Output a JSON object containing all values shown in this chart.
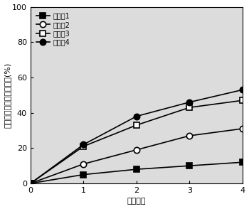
{
  "x": [
    0,
    1,
    2,
    3,
    4
  ],
  "series": [
    {
      "label": "实验组1",
      "values": [
        0,
        5,
        8,
        10,
        12
      ],
      "marker": "s",
      "fillstyle": "full",
      "color": "black"
    },
    {
      "label": "实验组2",
      "values": [
        0,
        11,
        19,
        27,
        31
      ],
      "marker": "o",
      "fillstyle": "none",
      "color": "black"
    },
    {
      "label": "实验组3",
      "values": [
        0,
        21,
        33,
        43,
        47
      ],
      "marker": "s",
      "fillstyle": "none",
      "color": "black"
    },
    {
      "label": "实验组4",
      "values": [
        0,
        22,
        38,
        46,
        53
      ],
      "marker": "o",
      "fillstyle": "full",
      "color": "black"
    }
  ],
  "xlabel": "淤洗次数",
  "ylabel": "污染土壤中重金属去除率(%)",
  "ylim": [
    0,
    100
  ],
  "xlim": [
    0,
    4
  ],
  "yticks": [
    0,
    20,
    40,
    60,
    80,
    100
  ],
  "xticks": [
    0,
    1,
    2,
    3,
    4
  ],
  "plot_bg_color": "#dcdcdc",
  "fig_bg_color": "#ffffff",
  "line_color": "black",
  "legend_fontsize": 7,
  "axis_fontsize": 8,
  "tick_fontsize": 8,
  "markersize": 6,
  "linewidth": 1.2
}
